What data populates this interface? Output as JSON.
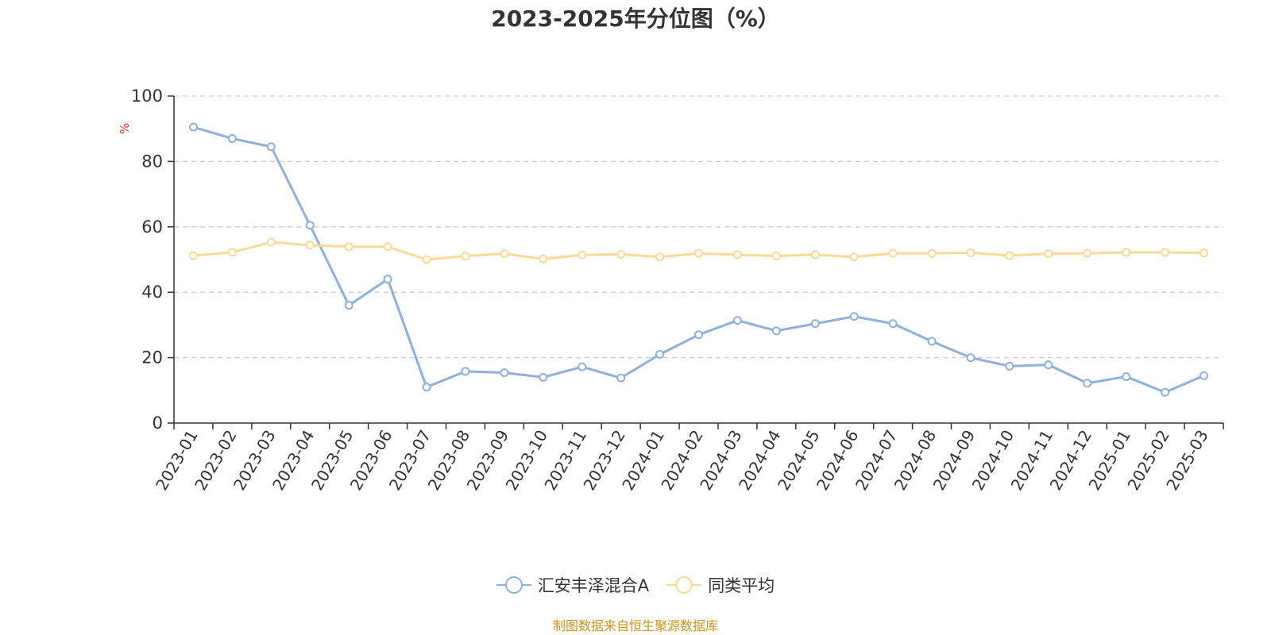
{
  "title": "2023-2025年分位图（%）",
  "source_note": "制图数据来自恒生聚源数据库",
  "chart_data": {
    "type": "line",
    "title": "2023-2025年分位图（%）",
    "ylabel": "%",
    "xlabel": "",
    "ylim": [
      0,
      100
    ],
    "yticks": [
      0,
      20,
      40,
      60,
      80,
      100
    ],
    "grid": true,
    "legend_position": "bottom-center",
    "categories": [
      "2023-01",
      "2023-02",
      "2023-03",
      "2023-04",
      "2023-05",
      "2023-06",
      "2023-07",
      "2023-08",
      "2023-09",
      "2023-10",
      "2023-11",
      "2023-12",
      "2024-01",
      "2024-02",
      "2024-03",
      "2024-04",
      "2024-05",
      "2024-06",
      "2024-07",
      "2024-08",
      "2024-09",
      "2024-10",
      "2024-11",
      "2024-12",
      "2025-01",
      "2025-02",
      "2025-03"
    ],
    "series": [
      {
        "name": "汇安丰泽混合A",
        "color": "#8eb0dc",
        "values": [
          90.5,
          87,
          84.5,
          60.5,
          36,
          44,
          11,
          15.8,
          15.4,
          14,
          17.2,
          13.8,
          21,
          27,
          31.4,
          28.2,
          30.4,
          32.6,
          30.4,
          25,
          20,
          17.4,
          17.8,
          12.2,
          14.2,
          9.4,
          14.5
        ]
      },
      {
        "name": "同类平均",
        "color": "#fcd996",
        "values": [
          51.2,
          52.2,
          55.3,
          54.4,
          53.9,
          53.9,
          50,
          51.1,
          51.8,
          50.2,
          51.4,
          51.6,
          50.8,
          51.9,
          51.5,
          51.1,
          51.5,
          50.8,
          51.9,
          51.9,
          52.1,
          51.2,
          51.8,
          51.9,
          52.2,
          52.2,
          52
        ]
      }
    ]
  }
}
